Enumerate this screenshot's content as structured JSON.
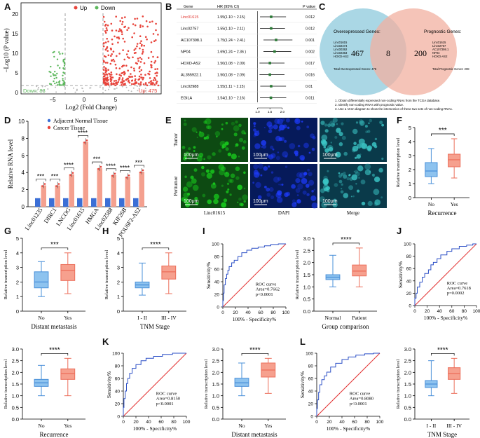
{
  "panel_labels": [
    "A",
    "B",
    "C",
    "D",
    "E",
    "F",
    "G",
    "H",
    "I",
    "J",
    "K",
    "L"
  ],
  "colors": {
    "up": "#e8453c",
    "down": "#5cb85c",
    "blue_box": "#4a90d9",
    "orange_box": "#ec6e5a",
    "bar_blue": "#3b6fd6",
    "bar_red": "#f4a08f",
    "roc_curve": "#2b4fc6",
    "roc_ref": "#e33333",
    "venn_left": "#9bd0e0",
    "venn_right": "#f2b0a0",
    "micro_bg": "#050a2a"
  },
  "volcano": {
    "legend_up": "Up",
    "legend_down": "Down",
    "ylabel": "−Log10 (P value)",
    "xlabel": "Log2 (Fold Change)",
    "yticks": [
      "0",
      "5",
      "10",
      "15",
      "20"
    ],
    "xticks": [
      "−5",
      "0",
      "5"
    ],
    "down_label": "Down: 83",
    "up_label": "Up: 475"
  },
  "forest": {
    "headers": [
      "Gene",
      "HR (95% CI)",
      "P value"
    ],
    "rows": [
      {
        "gene": "Linc01615",
        "ci": "1.55(1.10 ~ 2.15)",
        "p": "0.012",
        "hr": 1.55,
        "lo": 1.1,
        "hi": 2.15,
        "highlight": true
      },
      {
        "gene": "Linc02757",
        "ci": "1.55(1.10 ~ 2.11)",
        "p": "0.012",
        "hr": 1.55,
        "lo": 1.1,
        "hi": 2.11,
        "highlight": false
      },
      {
        "gene": "AC107398.1",
        "ci": "1.75(1.24 ~ 2.41)",
        "p": "0.001",
        "hr": 1.75,
        "lo": 1.24,
        "hi": 2.41,
        "highlight": false
      },
      {
        "gene": "NP04",
        "ci": "1.69(1.24 ~ 2.36 )",
        "p": "0.002",
        "hr": 1.69,
        "lo": 1.24,
        "hi": 2.36,
        "highlight": false
      },
      {
        "gene": "HOXD-AS2",
        "ci": "1.50(1.08 ~ 2.09)",
        "p": "0.017",
        "hr": 1.5,
        "lo": 1.08,
        "hi": 2.09,
        "highlight": false
      },
      {
        "gene": "AL355922.1",
        "ci": "1.50(1.08 ~ 2.09)",
        "p": "0.016",
        "hr": 1.5,
        "lo": 1.08,
        "hi": 2.09,
        "highlight": false
      },
      {
        "gene": "Linc02988",
        "ci": "1.55(1.11 ~ 2.15)",
        "p": "0.01",
        "hr": 1.55,
        "lo": 1.11,
        "hi": 2.15,
        "highlight": false
      },
      {
        "gene": "EGILA",
        "ci": "1.54(1.10 ~ 2.16)",
        "p": "0.011",
        "hr": 1.54,
        "lo": 1.1,
        "hi": 2.16,
        "highlight": false
      }
    ],
    "axis_ticks": [
      "1.0",
      "1.5",
      "2.0"
    ]
  },
  "venn": {
    "left_title": "Overexpressed Genes:",
    "right_title": "Prognostic Genes:",
    "left_count": "467",
    "overlap_count": "8",
    "right_count": "200",
    "left_genes": [
      "Linc01615",
      "Linc02474",
      "Linc00392",
      "Linc02363",
      "HOXD-AS2"
    ],
    "right_genes": [
      "Linc01615",
      "Linc02757",
      "AC107398.1",
      "NP04",
      "HOXD-AS2"
    ],
    "left_total": "Total Overexpressed Genes: 475",
    "right_total": "Total Prognostic Genes: 208",
    "notes": [
      "1. Obtain differentially expressed non-coding RNAs from the TCGA database.",
      "2. Identify non-coding RNAs with prognostic value.",
      "3. Use a Venn diagram to show the intersection of these two sets of non-coding RNAs."
    ]
  },
  "bar_d": {
    "legend": [
      "Adjacent Normal Tissue",
      "Cancer Tissue"
    ],
    "ylabel": "Relative RNA level",
    "yticks": [
      "0",
      "2",
      "4",
      "6",
      "8",
      "10"
    ],
    "ylim": [
      0,
      10
    ],
    "categories": [
      "Linc01235",
      "DIRC1",
      "LNCOG",
      "Linc01615",
      "HMGA",
      "Linc02588",
      "KIF26B",
      "POU6F2-AS2"
    ],
    "normal": [
      1,
      1,
      1,
      1,
      1,
      1,
      1,
      1
    ],
    "cancer": [
      2.5,
      2.5,
      3.8,
      7.6,
      4.5,
      3.7,
      3.5,
      4.1
    ],
    "sig": [
      "***",
      "***",
      "****",
      "****",
      "***",
      "****",
      "****",
      "***"
    ]
  },
  "micro": {
    "row_labels": [
      "Tumor",
      "Peritumor"
    ],
    "col_labels": [
      "Linc01615",
      "DAPI",
      "Merge"
    ],
    "scale": "100μm"
  },
  "box_common": {
    "ylabel": "Relative transcription level"
  },
  "box_f": {
    "yticks": [
      "0",
      "1",
      "2",
      "3",
      "4",
      "5"
    ],
    "ylim": [
      0,
      5
    ],
    "groups": [
      "No",
      "Yes"
    ],
    "xlabel": "Recurrence",
    "sig": "***",
    "stats": [
      {
        "min": 1.0,
        "q1": 1.5,
        "med": 1.9,
        "q3": 2.5,
        "max": 3.5
      },
      {
        "min": 1.4,
        "q1": 2.2,
        "med": 2.7,
        "q3": 3.1,
        "max": 4.2
      }
    ]
  },
  "box_g": {
    "yticks": [
      "0",
      "1",
      "2",
      "3",
      "4",
      "5"
    ],
    "ylim": [
      0,
      5
    ],
    "groups": [
      "No",
      "Yes"
    ],
    "xlabel": "Distant metastasis",
    "sig": "***",
    "stats": [
      {
        "min": 1.0,
        "q1": 1.6,
        "med": 2.0,
        "q3": 2.7,
        "max": 3.4
      },
      {
        "min": 1.2,
        "q1": 2.1,
        "med": 2.8,
        "q3": 3.2,
        "max": 4.0
      }
    ]
  },
  "box_h": {
    "yticks": [
      "0",
      "1",
      "2",
      "3",
      "4",
      "5"
    ],
    "ylim": [
      0,
      5
    ],
    "groups": [
      "I - II",
      "III - IV"
    ],
    "xlabel": "TNM Stage",
    "sig": "****",
    "stats": [
      {
        "min": 1.1,
        "q1": 1.6,
        "med": 1.8,
        "q3": 2.0,
        "max": 3.3
      },
      {
        "min": 1.2,
        "q1": 2.2,
        "med": 2.7,
        "q3": 3.1,
        "max": 4.0
      }
    ]
  },
  "box_i": {
    "yticks": [
      "0.0",
      "0.5",
      "1.0",
      "1.5",
      "2.0",
      "2.5",
      "3.0"
    ],
    "ylim": [
      0,
      3
    ],
    "groups": [
      "Normal",
      "Patient"
    ],
    "xlabel": "Group comparison",
    "sig": "****",
    "stats": [
      {
        "min": 1.0,
        "q1": 1.3,
        "med": 1.4,
        "q3": 1.5,
        "max": 2.3
      },
      {
        "min": 1.0,
        "q1": 1.45,
        "med": 1.65,
        "q3": 1.9,
        "max": 2.6
      }
    ]
  },
  "box_j2": {
    "yticks": [
      "0.0",
      "0.5",
      "1.0",
      "1.5",
      "2.0",
      "2.5",
      "3.0"
    ],
    "ylim": [
      0,
      3
    ],
    "groups": [
      "No",
      "Yes"
    ],
    "xlabel": "Recurrence",
    "sig": "****",
    "stats": [
      {
        "min": 1.0,
        "q1": 1.4,
        "med": 1.55,
        "q3": 1.7,
        "max": 2.3
      },
      {
        "min": 1.0,
        "q1": 1.7,
        "med": 1.95,
        "q3": 2.15,
        "max": 2.6
      }
    ]
  },
  "box_k2": {
    "yticks": [
      "0.0",
      "0.5",
      "1.0",
      "1.5",
      "2.0",
      "2.5",
      "3.0"
    ],
    "ylim": [
      0,
      3
    ],
    "groups": [
      "No",
      "Yes"
    ],
    "xlabel": "Distant metastasis",
    "sig": "****",
    "stats": [
      {
        "min": 1.0,
        "q1": 1.4,
        "med": 1.55,
        "q3": 1.75,
        "max": 2.4
      },
      {
        "min": 1.1,
        "q1": 1.8,
        "med": 2.1,
        "q3": 2.4,
        "max": 2.6
      }
    ]
  },
  "box_l2": {
    "yticks": [
      "0.0",
      "0.5",
      "1.0",
      "1.5",
      "2.0",
      "2.5",
      "3.0"
    ],
    "ylim": [
      0,
      3
    ],
    "groups": [
      "I - II",
      "III - IV"
    ],
    "xlabel": "TNM Stage",
    "sig": "****",
    "stats": [
      {
        "min": 1.0,
        "q1": 1.35,
        "med": 1.5,
        "q3": 1.65,
        "max": 2.5
      },
      {
        "min": 1.1,
        "q1": 1.7,
        "med": 1.95,
        "q3": 2.2,
        "max": 2.6
      }
    ]
  },
  "roc_common": {
    "ylabel": "Sensitivity%",
    "xlabel": "100% - Specificity%",
    "ticks": [
      "0",
      "20",
      "40",
      "60",
      "80",
      "100"
    ]
  },
  "roc_i": {
    "title": "ROC  curve",
    "area": "Area=0.7662",
    "p": "p<0.0001",
    "points": [
      [
        0,
        0
      ],
      [
        1,
        10
      ],
      [
        2,
        22
      ],
      [
        4,
        35
      ],
      [
        6,
        45
      ],
      [
        8,
        52
      ],
      [
        10,
        58
      ],
      [
        14,
        64
      ],
      [
        18,
        70
      ],
      [
        24,
        74
      ],
      [
        30,
        80
      ],
      [
        38,
        86
      ],
      [
        46,
        90
      ],
      [
        56,
        93
      ],
      [
        66,
        95
      ],
      [
        76,
        97
      ],
      [
        88,
        99
      ],
      [
        100,
        100
      ]
    ]
  },
  "roc_j": {
    "title": "ROC  curve",
    "area": "Area=0.7618",
    "p": "p=0.0002",
    "points": [
      [
        0,
        0
      ],
      [
        2,
        12
      ],
      [
        4,
        20
      ],
      [
        8,
        30
      ],
      [
        12,
        38
      ],
      [
        16,
        46
      ],
      [
        22,
        52
      ],
      [
        26,
        58
      ],
      [
        30,
        66
      ],
      [
        36,
        70
      ],
      [
        42,
        76
      ],
      [
        52,
        82
      ],
      [
        60,
        88
      ],
      [
        72,
        92
      ],
      [
        84,
        96
      ],
      [
        94,
        98
      ],
      [
        100,
        100
      ]
    ]
  },
  "roc_k": {
    "title": "ROC  curve",
    "area": "Area=0.8150",
    "p": "p<0.0001",
    "points": [
      [
        0,
        0
      ],
      [
        1,
        14
      ],
      [
        3,
        28
      ],
      [
        5,
        40
      ],
      [
        7,
        52
      ],
      [
        10,
        60
      ],
      [
        14,
        68
      ],
      [
        20,
        76
      ],
      [
        28,
        82
      ],
      [
        36,
        88
      ],
      [
        48,
        92
      ],
      [
        62,
        95
      ],
      [
        78,
        98
      ],
      [
        100,
        100
      ]
    ]
  },
  "roc_l": {
    "title": "ROC  curve",
    "area": "Area=0.8080",
    "p": "p<0.0001",
    "points": [
      [
        0,
        0
      ],
      [
        1,
        12
      ],
      [
        3,
        26
      ],
      [
        5,
        38
      ],
      [
        8,
        50
      ],
      [
        12,
        58
      ],
      [
        16,
        64
      ],
      [
        22,
        70
      ],
      [
        30,
        78
      ],
      [
        40,
        84
      ],
      [
        50,
        90
      ],
      [
        62,
        94
      ],
      [
        76,
        97
      ],
      [
        90,
        99
      ],
      [
        100,
        100
      ]
    ]
  }
}
